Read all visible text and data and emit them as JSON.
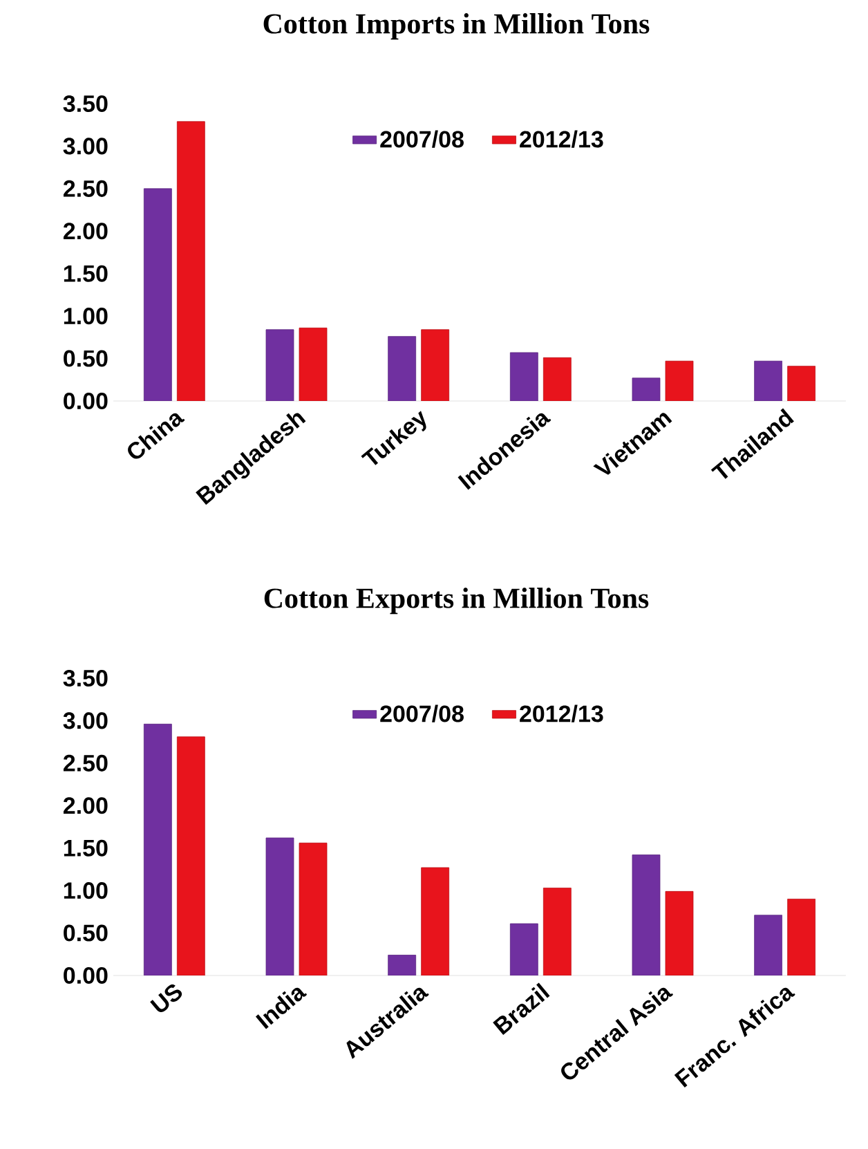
{
  "chart_data": [
    {
      "type": "bar",
      "title": "Cotton  Imports in Million Tons",
      "categories": [
        "China",
        "Bangladesh",
        "Turkey",
        "Indonesia",
        "Vietnam",
        "Thailand"
      ],
      "series": [
        {
          "name": "2007/08",
          "color": "#7030a0",
          "values": [
            2.5,
            0.84,
            0.76,
            0.57,
            0.27,
            0.47
          ]
        },
        {
          "name": "2012/13",
          "color": "#e8141c",
          "values": [
            3.29,
            0.86,
            0.84,
            0.51,
            0.47,
            0.41
          ]
        }
      ],
      "ylim": [
        0,
        3.5
      ],
      "yticks": [
        {
          "value": 0,
          "label": "0.00"
        },
        {
          "value": 0.5,
          "label": "0.50"
        },
        {
          "value": 1,
          "label": "1.00"
        },
        {
          "value": 1.5,
          "label": "1.50"
        },
        {
          "value": 2,
          "label": "2.00"
        },
        {
          "value": 2.5,
          "label": "2.50"
        },
        {
          "value": 3,
          "label": "3.00"
        },
        {
          "value": 3.5,
          "label": "3.50"
        }
      ],
      "grid": false,
      "legend": "top"
    },
    {
      "type": "bar",
      "title": "Cotton  Exports in Million Tons",
      "categories": [
        "US",
        "India",
        "Australia",
        "Brazil",
        "Central Asia",
        "Franc. Africa"
      ],
      "series": [
        {
          "name": "2007/08",
          "color": "#7030a0",
          "values": [
            2.96,
            1.62,
            0.24,
            0.61,
            1.42,
            0.71
          ]
        },
        {
          "name": "2012/13",
          "color": "#e8141c",
          "values": [
            2.81,
            1.56,
            1.27,
            1.03,
            0.99,
            0.9
          ]
        }
      ],
      "ylim": [
        0,
        3.5
      ],
      "yticks": [
        {
          "value": 0,
          "label": "0.00"
        },
        {
          "value": 0.5,
          "label": "0.50"
        },
        {
          "value": 1,
          "label": "1.00"
        },
        {
          "value": 1.5,
          "label": "1.50"
        },
        {
          "value": 2,
          "label": "2.00"
        },
        {
          "value": 2.5,
          "label": "2.50"
        },
        {
          "value": 3,
          "label": "3.00"
        },
        {
          "value": 3.5,
          "label": "3.50"
        }
      ],
      "grid": false,
      "legend": "top"
    }
  ]
}
